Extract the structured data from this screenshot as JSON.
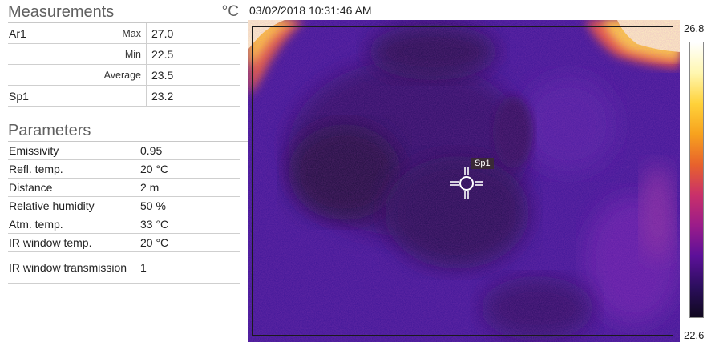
{
  "measurements": {
    "title": "Measurements",
    "unit": "°C",
    "rows": [
      {
        "name": "Ar1",
        "label": "Max",
        "value": "27.0"
      },
      {
        "name": "",
        "label": "Min",
        "value": "22.5"
      },
      {
        "name": "",
        "label": "Average",
        "value": "23.5"
      },
      {
        "name": "Sp1",
        "label": "",
        "value": "23.2"
      }
    ]
  },
  "parameters": {
    "title": "Parameters",
    "rows": [
      {
        "label": "Emissivity",
        "value": "0.95"
      },
      {
        "label": "Refl. temp.",
        "value": "20  °C"
      },
      {
        "label": "Distance",
        "value": "2  m"
      },
      {
        "label": "Relative humidity",
        "value": "50  %"
      },
      {
        "label": "Atm. temp.",
        "value": "33  °C"
      },
      {
        "label": "IR window temp.",
        "value": "20  °C"
      },
      {
        "label": "IR window transmission",
        "value": "1"
      }
    ]
  },
  "image": {
    "timestamp": "03/02/2018 10:31:46 AM",
    "spot_label": "Sp1"
  },
  "scale": {
    "max": "26.8",
    "min": "22.6",
    "colors": [
      "#ffffff",
      "#fff7b0",
      "#ffd23a",
      "#f7a21e",
      "#e8622c",
      "#c9306a",
      "#9b1c8a",
      "#5c1099",
      "#2c0e5e",
      "#10081e"
    ]
  }
}
